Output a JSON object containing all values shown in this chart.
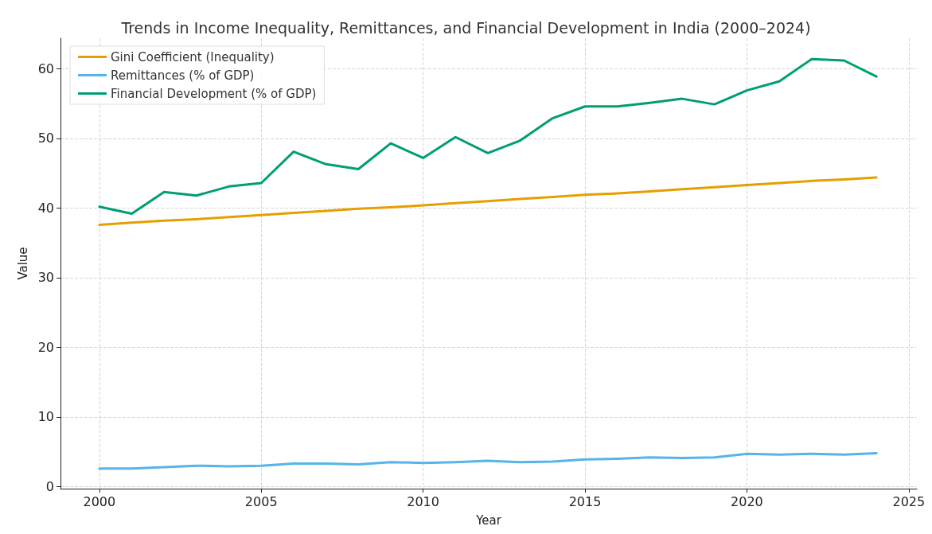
{
  "chart_data": {
    "type": "line",
    "title": "Trends in Income Inequality, Remittances, and Financial Development in India (2000–2024)",
    "xlabel": "Year",
    "ylabel": "Value",
    "x": [
      2000,
      2001,
      2002,
      2003,
      2004,
      2005,
      2006,
      2007,
      2008,
      2009,
      2010,
      2011,
      2012,
      2013,
      2014,
      2015,
      2016,
      2017,
      2018,
      2019,
      2020,
      2021,
      2022,
      2023,
      2024
    ],
    "series": [
      {
        "name": "Gini Coefficient (Inequality)",
        "color": "#e69f00",
        "values": [
          37.6,
          37.9,
          38.2,
          38.4,
          38.7,
          39.0,
          39.3,
          39.6,
          39.9,
          40.1,
          40.4,
          40.7,
          41.0,
          41.3,
          41.6,
          41.9,
          42.1,
          42.4,
          42.7,
          43.0,
          43.3,
          43.6,
          43.9,
          44.1,
          44.4
        ]
      },
      {
        "name": "Remittances (% of GDP)",
        "color": "#56b4e9",
        "values": [
          2.6,
          2.6,
          2.8,
          3.0,
          2.9,
          3.0,
          3.3,
          3.3,
          3.2,
          3.5,
          3.4,
          3.5,
          3.7,
          3.5,
          3.6,
          3.9,
          4.0,
          4.2,
          4.1,
          4.2,
          4.7,
          4.6,
          4.7,
          4.6,
          4.8
        ]
      },
      {
        "name": "Financial Development (% of GDP)",
        "color": "#009e73",
        "values": [
          40.2,
          39.2,
          42.3,
          41.8,
          43.1,
          43.6,
          48.1,
          46.3,
          45.6,
          49.3,
          47.2,
          50.2,
          47.9,
          49.7,
          52.9,
          54.6,
          54.6,
          55.1,
          55.7,
          54.9,
          56.9,
          58.2,
          61.4,
          61.2,
          58.9
        ]
      }
    ],
    "xlim": [
      1998.8,
      2025.25
    ],
    "xticks": [
      2000,
      2005,
      2010,
      2015,
      2020,
      2025
    ],
    "ylim": [
      -0.3,
      64.4
    ],
    "yticks": [
      0,
      10,
      20,
      30,
      40,
      50,
      60
    ],
    "grid": true,
    "legend": "top left",
    "marker": "none",
    "line_style": "solid"
  }
}
